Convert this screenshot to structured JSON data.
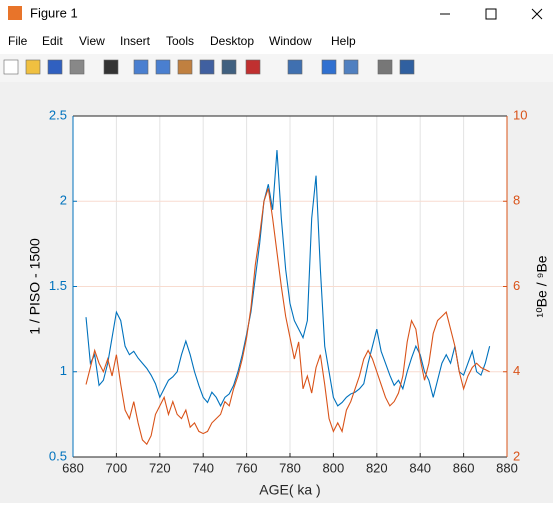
{
  "window": {
    "title": "Figure 1",
    "menu": [
      "File",
      "Edit",
      "View",
      "Insert",
      "Tools",
      "Desktop",
      "Window",
      "Help"
    ]
  },
  "chart_data": {
    "type": "line",
    "xlabel": "AGE( ka )",
    "ylabel": "1 / PISO - 1500",
    "y2label": "¹⁰Be / ⁹Be",
    "x": [
      686,
      688,
      690,
      692,
      694,
      696,
      698,
      700,
      702,
      704,
      706,
      708,
      710,
      712,
      714,
      716,
      718,
      720,
      722,
      724,
      726,
      728,
      730,
      732,
      734,
      736,
      738,
      740,
      742,
      744,
      746,
      748,
      750,
      752,
      754,
      756,
      758,
      760,
      762,
      764,
      766,
      768,
      770,
      772,
      774,
      776,
      778,
      780,
      782,
      784,
      786,
      788,
      790,
      792,
      794,
      796,
      798,
      800,
      802,
      804,
      806,
      808,
      810,
      812,
      814,
      816,
      818,
      820,
      822,
      824,
      826,
      828,
      830,
      832,
      834,
      836,
      838,
      840,
      842,
      844,
      846,
      848,
      850,
      852,
      854,
      856,
      858,
      860,
      862,
      864,
      866,
      868,
      870,
      872
    ],
    "series": [
      {
        "color": "#0072bd",
        "axis": "y",
        "values": [
          1.32,
          1.05,
          1.1,
          0.92,
          0.95,
          1.05,
          1.2,
          1.35,
          1.3,
          1.15,
          1.1,
          1.12,
          1.08,
          1.05,
          1.02,
          0.98,
          0.93,
          0.85,
          0.9,
          0.95,
          0.97,
          1.0,
          1.1,
          1.18,
          1.1,
          1.0,
          0.92,
          0.85,
          0.82,
          0.88,
          0.85,
          0.8,
          0.85,
          0.87,
          0.92,
          1.0,
          1.1,
          1.22,
          1.35,
          1.55,
          1.75,
          2.0,
          2.1,
          1.95,
          2.3,
          1.9,
          1.6,
          1.4,
          1.3,
          1.25,
          1.2,
          1.3,
          1.9,
          2.15,
          1.6,
          1.15,
          1.0,
          0.85,
          0.8,
          0.82,
          0.85,
          0.87,
          0.88,
          0.9,
          0.93,
          1.05,
          1.15,
          1.25,
          1.12,
          1.05,
          0.98,
          0.92,
          0.95,
          0.9,
          1.0,
          1.08,
          1.15,
          1.1,
          1.0,
          0.95,
          0.85,
          0.95,
          1.05,
          1.1,
          1.05,
          1.15,
          1.0,
          0.98,
          1.05,
          1.12,
          1.0,
          0.98,
          1.05,
          1.15
        ]
      },
      {
        "color": "#d95319",
        "axis": "y2",
        "values": [
          3.7,
          4.1,
          4.5,
          4.2,
          4.0,
          4.3,
          3.9,
          4.4,
          3.7,
          3.1,
          2.9,
          3.3,
          2.8,
          2.4,
          2.3,
          2.5,
          3.0,
          3.2,
          3.4,
          3.0,
          3.3,
          3.0,
          2.9,
          3.1,
          2.7,
          2.8,
          2.6,
          2.55,
          2.6,
          2.8,
          2.9,
          3.0,
          3.3,
          3.2,
          3.6,
          3.9,
          4.3,
          4.8,
          5.5,
          6.5,
          7.2,
          8.0,
          8.3,
          7.6,
          6.8,
          6.0,
          5.3,
          4.8,
          4.3,
          4.7,
          3.6,
          3.9,
          3.5,
          4.1,
          4.4,
          3.7,
          2.9,
          2.6,
          2.8,
          2.6,
          3.1,
          3.3,
          3.6,
          3.9,
          4.3,
          4.5,
          4.3,
          4.0,
          3.7,
          3.4,
          3.2,
          3.3,
          3.5,
          3.9,
          4.7,
          5.2,
          5.0,
          4.3,
          3.8,
          4.2,
          4.9,
          5.2,
          5.3,
          5.4,
          5.0,
          4.6,
          4.0,
          3.6,
          3.9,
          4.1,
          4.2,
          4.1,
          4.05,
          4.0
        ]
      }
    ],
    "xlim": [
      680,
      880
    ],
    "xticks": [
      680,
      700,
      720,
      740,
      760,
      780,
      800,
      820,
      840,
      860,
      880
    ],
    "ylim": [
      0.5,
      2.5
    ],
    "yticks": [
      0.5,
      1,
      1.5,
      2,
      2.5
    ],
    "y2lim": [
      2,
      10
    ],
    "y2ticks": [
      2,
      4,
      6,
      8,
      10
    ],
    "ycolor": "#0072bd",
    "y2color": "#d95319",
    "grid": true
  }
}
